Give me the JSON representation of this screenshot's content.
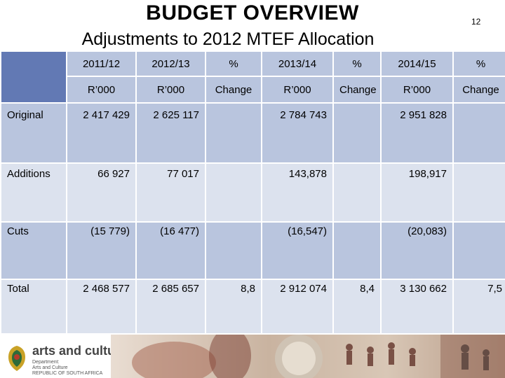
{
  "header": {
    "title": "BUDGET OVERVIEW",
    "slide_number": "12",
    "subtitle": "Adjustments to 2012 MTEF Allocation"
  },
  "table": {
    "year_headers": [
      "2011/12",
      "2012/13",
      "%",
      "2013/14",
      "%",
      "2014/15",
      "%"
    ],
    "unit_headers": [
      "R’000",
      "R’000",
      "Change",
      "R’000",
      "Change",
      "R’000",
      "Change"
    ],
    "rows": [
      {
        "label": "Original",
        "values": [
          "2 417 429",
          "2 625 117",
          "",
          "2 784 743",
          "",
          "2 951 828",
          ""
        ]
      },
      {
        "label": "Additions",
        "values": [
          "66 927",
          "77 017",
          "",
          "143,878",
          "",
          "198,917",
          ""
        ]
      },
      {
        "label": "Cuts",
        "values": [
          "(15 779)",
          "(16 477)",
          "",
          "(16,547)",
          "",
          "(20,083)",
          ""
        ]
      },
      {
        "label": "Total",
        "values": [
          "2 468 577",
          "2 685 657",
          "8,8",
          "2 912 074",
          "8,4",
          "3 130 662",
          "7,5"
        ]
      }
    ]
  },
  "footer": {
    "logo_name": "arts and culture",
    "logo_sub_1": "Department:",
    "logo_sub_2": "Arts and Culture",
    "logo_sub_3": "REPUBLIC OF SOUTH AFRICA"
  },
  "colors": {
    "corner": "#6279b4",
    "band_dark": "#b9c5de",
    "band_light": "#dce2ee"
  }
}
